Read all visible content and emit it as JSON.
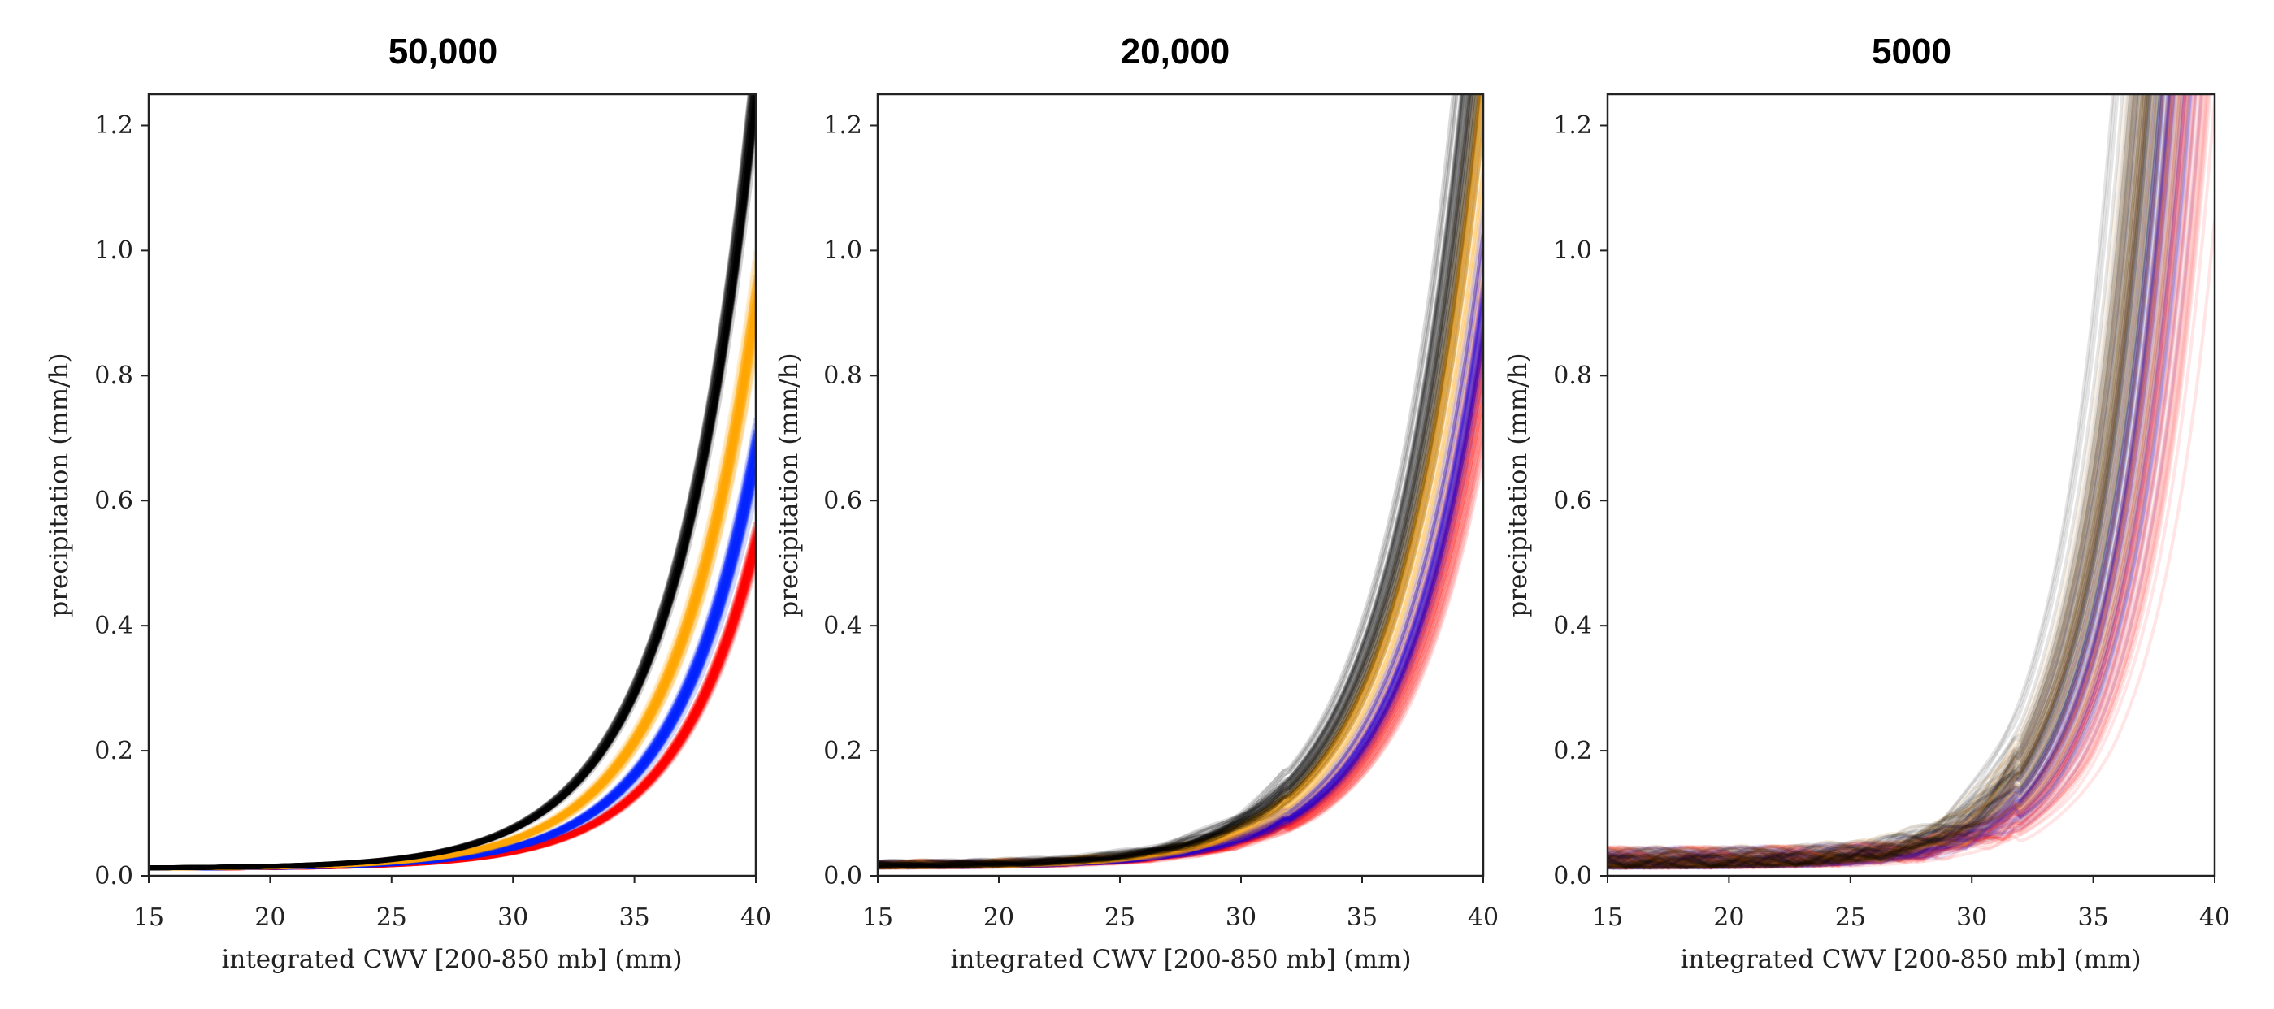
{
  "chart_data": [
    {
      "type": "line",
      "title": "50,000",
      "xlabel": "integrated CWV [200-850 mb] (mm)",
      "ylabel": "precipitation (mm/h)",
      "xlim": [
        15,
        40
      ],
      "ylim": [
        0.0,
        1.25
      ],
      "xticks": [
        "15",
        "20",
        "25",
        "30",
        "35",
        "40"
      ],
      "yticks": [
        "0.0",
        "0.2",
        "0.4",
        "0.6",
        "0.8",
        "1.0",
        "1.2"
      ],
      "ensemble_members": 40,
      "spread": 0.35,
      "series": [
        {
          "name": "black",
          "color": "#000000",
          "x0": 25.2,
          "rise": 3.35,
          "amp": 0.015
        },
        {
          "name": "orange",
          "color": "#ffa500",
          "x0": 26.3,
          "rise": 3.35,
          "amp": 0.015
        },
        {
          "name": "blue",
          "color": "#0022ff",
          "x0": 27.3,
          "rise": 3.35,
          "amp": 0.015
        },
        {
          "name": "red",
          "color": "#ff0000",
          "x0": 28.1,
          "rise": 3.35,
          "amp": 0.015
        }
      ]
    },
    {
      "type": "line",
      "title": "20,000",
      "xlabel": "integrated CWV [200-850 mb] (mm)",
      "ylabel": "precipitation (mm/h)",
      "xlim": [
        15,
        40
      ],
      "ylim": [
        0.0,
        1.25
      ],
      "xticks": [
        "15",
        "20",
        "25",
        "30",
        "35",
        "40"
      ],
      "yticks": [
        "0.0",
        "0.2",
        "0.4",
        "0.6",
        "0.8",
        "1.0",
        "1.2"
      ],
      "ensemble_members": 40,
      "spread": 0.9,
      "series": [
        {
          "name": "black",
          "color": "#000000",
          "x0": 25.7,
          "rise": 3.3,
          "amp": 0.02
        },
        {
          "name": "orange",
          "color": "#ffa500",
          "x0": 26.4,
          "rise": 3.3,
          "amp": 0.02
        },
        {
          "name": "blue",
          "color": "#2200cc",
          "x0": 27.4,
          "rise": 3.3,
          "amp": 0.02
        },
        {
          "name": "red",
          "color": "#ff0000",
          "x0": 27.9,
          "rise": 3.3,
          "amp": 0.02
        }
      ]
    },
    {
      "type": "line",
      "title": "5000",
      "xlabel": "integrated CWV [200-850 mb] (mm)",
      "ylabel": "precipitation (mm/h)",
      "xlim": [
        15,
        40
      ],
      "ylim": [
        0.0,
        1.25
      ],
      "xticks": [
        "15",
        "20",
        "25",
        "30",
        "35",
        "40"
      ],
      "yticks": [
        "0.0",
        "0.2",
        "0.4",
        "0.6",
        "0.8",
        "1.0",
        "1.2"
      ],
      "ensemble_members": 40,
      "spread": 1.7,
      "series": [
        {
          "name": "black",
          "color": "#000000",
          "x0": 26.9,
          "rise": 2.5,
          "amp": 0.02
        },
        {
          "name": "orange",
          "color": "#c07000",
          "x0": 27.1,
          "rise": 2.5,
          "amp": 0.02
        },
        {
          "name": "blue",
          "color": "#2200cc",
          "x0": 27.9,
          "rise": 2.5,
          "amp": 0.02
        },
        {
          "name": "red",
          "color": "#ff0000",
          "x0": 28.6,
          "rise": 2.5,
          "amp": 0.02
        }
      ]
    }
  ]
}
